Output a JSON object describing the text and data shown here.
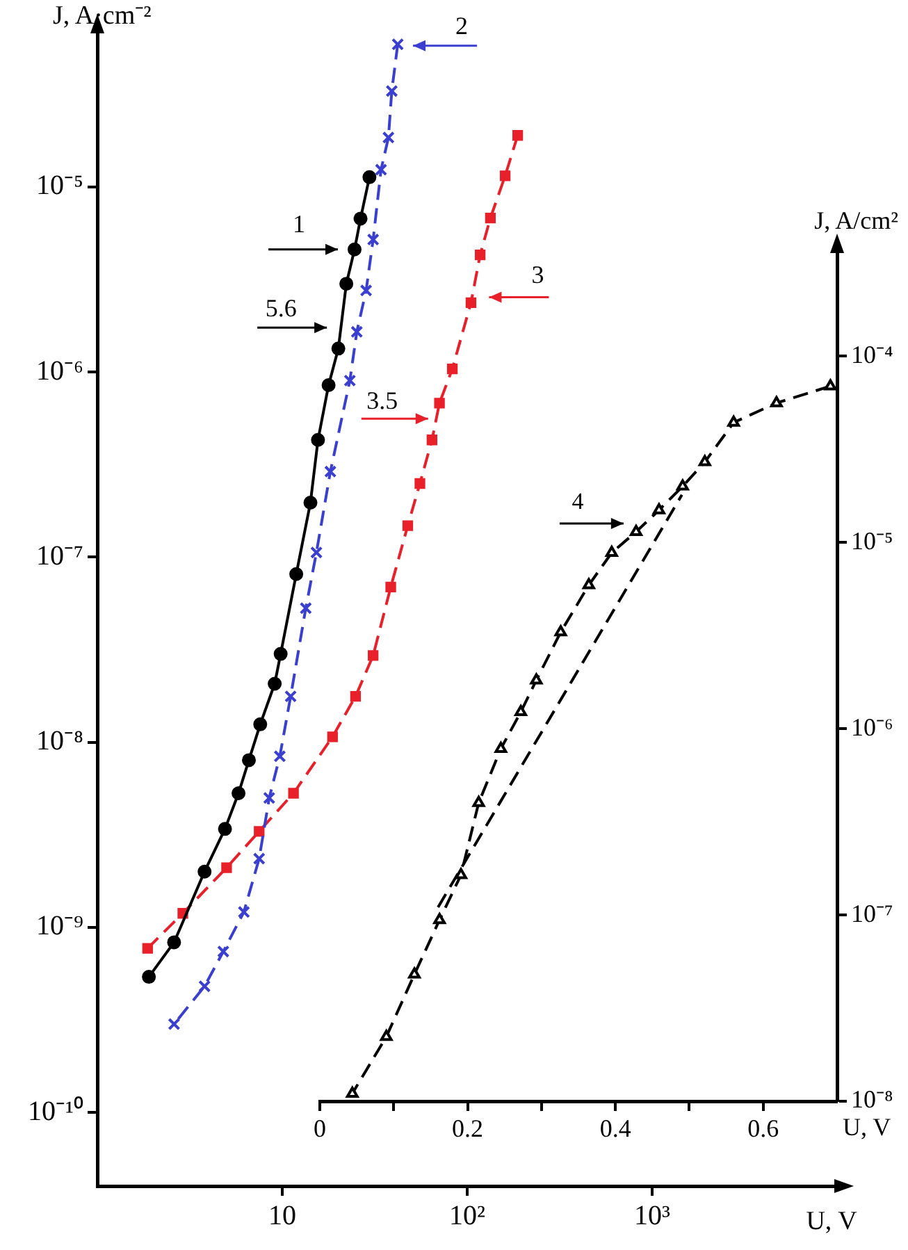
{
  "chart_data": [
    {
      "type": "line",
      "xlabel": "U, V",
      "ylabel": "J, A·cm⁻²",
      "log": "xy",
      "xlim": [
        1,
        10000
      ],
      "ylim": [
        4e-11,
        7e-05
      ],
      "xticks": [
        10,
        {
          "value": 100,
          "label": "10²"
        },
        {
          "value": 1000,
          "label": "10³"
        }
      ],
      "yticks": [
        {
          "value": 1e-10,
          "label": "10⁻¹⁰"
        },
        {
          "value": 1e-09,
          "label": "10⁻⁹"
        },
        {
          "value": 1e-08,
          "label": "10⁻⁸"
        },
        {
          "value": 1e-07,
          "label": "10⁻⁷"
        },
        {
          "value": 1e-06,
          "label": "10⁻⁶"
        },
        {
          "value": 1e-05,
          "label": "10⁻⁵"
        }
      ],
      "grid": false,
      "legend": false,
      "series": [
        {
          "name": "1",
          "color": "#000000",
          "marker": "circle",
          "line_style": "solid",
          "x": [
            29.6,
            26.5,
            24.6,
            22.2,
            20.1,
            17.8,
            15.6,
            14.2,
            11.9,
            9.8,
            9.1,
            7.6,
            6.6,
            5.8,
            4.9,
            3.8,
            2.6,
            1.9
          ],
          "values": [
            1.13e-05,
            6.75e-06,
            4.6e-06,
            3e-06,
            1.34e-06,
            8.5e-07,
            4.3e-07,
            1.97e-07,
            8.1e-08,
            3e-08,
            2.07e-08,
            1.25e-08,
            8e-09,
            5.3e-09,
            3.4e-09,
            2e-09,
            8.3e-10,
            5.4e-10
          ]
        },
        {
          "name": "2",
          "color": "#3a3fd0",
          "marker": "cross",
          "line_style": "dashed",
          "x": [
            42.1,
            39.1,
            37.5,
            34.2,
            31.0,
            28.4,
            25.3,
            23.2,
            18.2,
            15.3,
            13.4,
            11.1,
            9.7,
            8.5,
            7.5,
            6.2,
            4.8,
            3.8,
            2.6
          ],
          "values": [
            5.9e-05,
            3.3e-05,
            1.85e-05,
            1.24e-05,
            5.2e-06,
            2.76e-06,
            1.65e-06,
            9e-07,
            2.9e-07,
            1.06e-07,
            5.3e-08,
            1.77e-08,
            8.4e-09,
            5e-09,
            2.35e-09,
            1.21e-09,
            7.4e-10,
            4.8e-10,
            3e-10
          ]
        },
        {
          "name": "3",
          "color": "#e8202a",
          "marker": "square",
          "line_style": "dashed",
          "x": [
            187.5,
            160.4,
            133.5,
            117.5,
            104.8,
            83.1,
            70.8,
            64.5,
            55.5,
            47.7,
            38.6,
            31.0,
            24.9,
            18.7,
            11.5,
            7.5,
            5.0,
            2.9,
            1.87
          ],
          "values": [
            1.9e-05,
            1.15e-05,
            6.8e-06,
            4.3e-06,
            2.37e-06,
            1.04e-06,
            6.8e-07,
            4.3e-07,
            2.5e-07,
            1.48e-07,
            6.9e-08,
            2.94e-08,
            1.77e-08,
            1.07e-08,
            5.3e-09,
            3.3e-09,
            2.1e-09,
            1.19e-09,
            7.7e-10
          ]
        }
      ],
      "annotations": [
        {
          "text": "5.6",
          "x": 19.0,
          "y": 1.74e-06
        },
        {
          "text": "3.5",
          "x": 67,
          "y": 5.6e-07
        }
      ]
    },
    {
      "type": "line",
      "xlabel": "U, V",
      "ylabel": "J, A/cm²",
      "log": "y",
      "xlim": [
        0,
        0.7
      ],
      "ylim": [
        1e-08,
        0.00037
      ],
      "xticks": [
        0,
        {
          "value": 0.1,
          "label": null
        },
        0.2,
        {
          "value": 0.3,
          "label": null
        },
        0.4,
        {
          "value": 0.5,
          "label": null
        },
        0.6
      ],
      "yticks": [
        {
          "value": 1e-08,
          "label": "10⁻⁸"
        },
        {
          "value": 1e-07,
          "label": "10⁻⁷"
        },
        {
          "value": 1e-06,
          "label": "10⁻⁶"
        },
        {
          "value": 1e-05,
          "label": "10⁻⁵"
        },
        {
          "value": 0.0001,
          "label": "10⁻⁴"
        }
      ],
      "grid": false,
      "legend": false,
      "series": [
        {
          "name": "4",
          "color": "#000000",
          "marker": "triangle",
          "line_style": "dashed",
          "x": [
            0.691,
            0.618,
            0.56,
            0.521,
            0.491,
            0.459,
            0.428,
            0.395,
            0.364,
            0.326,
            0.293,
            0.272,
            0.245,
            0.215,
            0.191,
            0.162,
            0.128,
            0.09,
            0.044
          ],
          "values": [
            6.9e-05,
            5.6e-05,
            4.4e-05,
            2.7e-05,
            2e-05,
            1.49e-05,
            1.14e-05,
            8.8e-06,
            5.9e-06,
            3.3e-06,
            1.82e-06,
            1.23e-06,
            7.8e-07,
            4e-07,
            1.64e-07,
            9.4e-08,
            4.8e-08,
            2.22e-08,
            1.1e-08
          ]
        },
        {
          "type": "line",
          "color": "#000000",
          "marker": "none",
          "line_style": "dashed",
          "x": [
            0.16,
            0.49
          ],
          "values": [
            1.1e-07,
            1.8e-05
          ]
        }
      ]
    }
  ]
}
